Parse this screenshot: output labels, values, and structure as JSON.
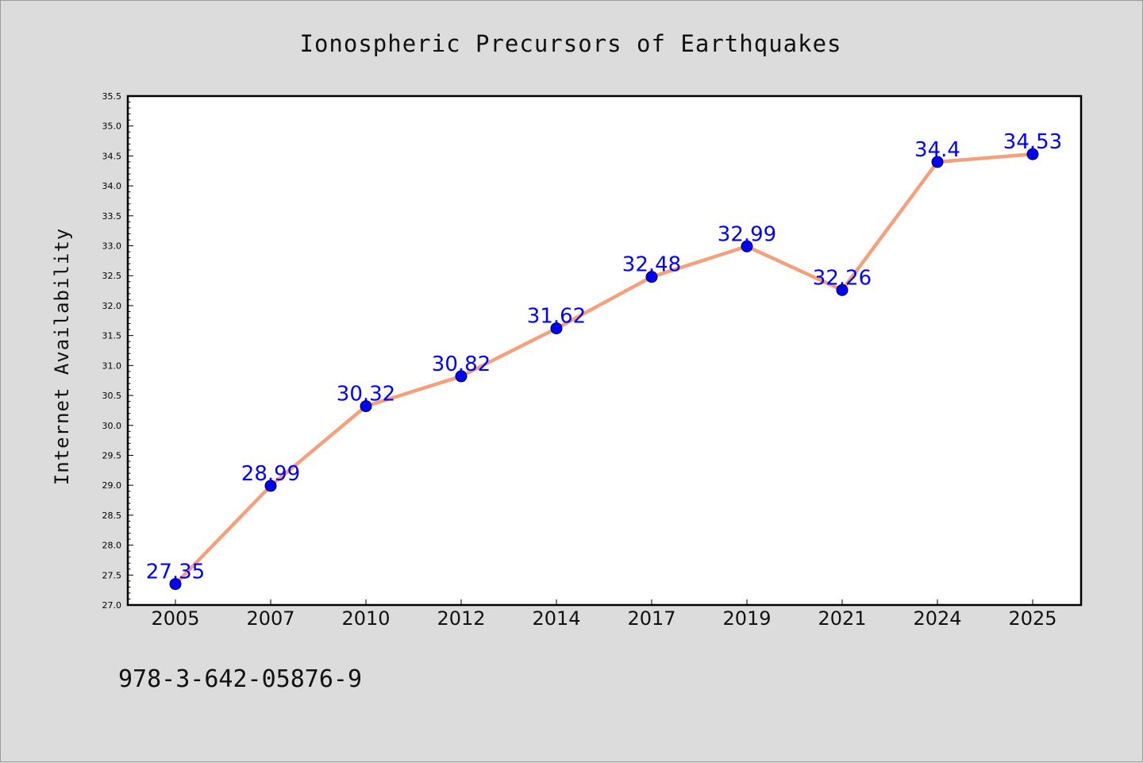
{
  "chart_data": {
    "type": "line",
    "title": "Ionospheric Precursors of Earthquakes",
    "ylabel": "Internet Availability",
    "categories": [
      "2005",
      "2007",
      "2010",
      "2012",
      "2014",
      "2017",
      "2019",
      "2021",
      "2024",
      "2025"
    ],
    "values": [
      27.35,
      28.99,
      30.32,
      30.82,
      31.62,
      32.48,
      32.99,
      32.26,
      34.4,
      34.53
    ],
    "data_labels": [
      "27.35",
      "28.99",
      "30.32",
      "30.82",
      "31.62",
      "32.48",
      "32.99",
      "32.26",
      "34.4",
      "34.53"
    ],
    "ylim": [
      27.0,
      35.5
    ],
    "yticks": [
      "27.0",
      "27.5",
      "28.0",
      "28.5",
      "29.0",
      "29.5",
      "30.0",
      "30.5",
      "31.0",
      "31.5",
      "32.0",
      "32.5",
      "33.0",
      "33.5",
      "34.0",
      "34.5",
      "35.0",
      "35.5"
    ],
    "grid": false,
    "line_color": "#f4a07c",
    "marker_color": "#0000ff",
    "label_color": "#0000ff"
  },
  "annotation": "978-3-642-05876-9"
}
